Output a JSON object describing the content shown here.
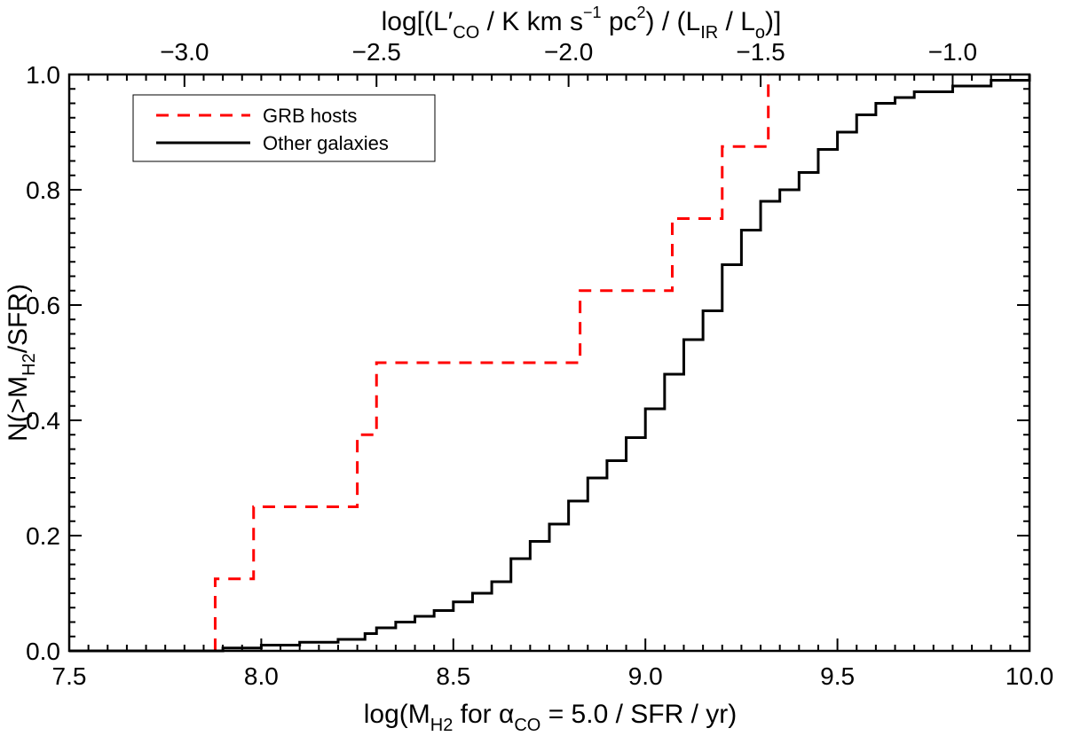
{
  "chart_data": {
    "type": "line",
    "step": true,
    "xlabel": {
      "prefix": "log(M",
      "sub1": "H2",
      "mid": "  for ",
      "greek": "α",
      "sub2": "CO",
      "suffix": " = 5.0 / SFR / yr)"
    },
    "ylabel": {
      "prefix": "N(>M",
      "sub": "H2",
      "suffix": "/SFR)"
    },
    "top_label": {
      "p1": "log[(L′",
      "sub1": "CO",
      "p2": " / K km s",
      "sup1": "−1",
      "p3": " pc",
      "sup2": "2",
      "p4": ") / (L",
      "sub2": "IR",
      "p5": " / L",
      "sub3": "o",
      "p6": ")]"
    },
    "xlim": [
      7.5,
      10.0
    ],
    "ylim": [
      0.0,
      1.0
    ],
    "x_ticks": [
      7.5,
      8.0,
      8.5,
      9.0,
      9.5,
      10.0
    ],
    "x_tick_labels": [
      "7.5",
      "8.0",
      "8.5",
      "9.0",
      "9.5",
      "10.0"
    ],
    "y_ticks": [
      0.0,
      0.2,
      0.4,
      0.6,
      0.8,
      1.0
    ],
    "y_tick_labels": [
      "0.0",
      "0.2",
      "0.4",
      "0.6",
      "0.8",
      "1.0"
    ],
    "top_ticks": [
      -3.0,
      -2.5,
      -2.0,
      -1.5,
      -1.0
    ],
    "top_tick_labels": [
      "−3.0",
      "−2.5",
      "−2.0",
      "−1.5",
      "−1.0"
    ],
    "top_axis_offset": 10.8,
    "legend_placement": "top-left",
    "series": [
      {
        "name": "GRB hosts",
        "color": "#ff0000",
        "dash": true,
        "x": [
          7.88,
          7.98,
          8.25,
          8.3,
          8.83,
          9.07,
          9.2,
          9.32
        ],
        "y": [
          0.125,
          0.25,
          0.375,
          0.5,
          0.625,
          0.75,
          0.875,
          1.0
        ]
      },
      {
        "name": "Other galaxies",
        "color": "#000000",
        "dash": false,
        "x": [
          7.5,
          7.8,
          7.9,
          8.0,
          8.1,
          8.2,
          8.27,
          8.3,
          8.35,
          8.4,
          8.45,
          8.5,
          8.55,
          8.6,
          8.65,
          8.7,
          8.75,
          8.8,
          8.85,
          8.9,
          8.95,
          9.0,
          9.05,
          9.1,
          9.15,
          9.2,
          9.25,
          9.3,
          9.35,
          9.4,
          9.45,
          9.5,
          9.55,
          9.6,
          9.65,
          9.7,
          9.8,
          9.9,
          10.0
        ],
        "y": [
          0.0,
          0.0,
          0.005,
          0.01,
          0.015,
          0.02,
          0.03,
          0.04,
          0.05,
          0.06,
          0.07,
          0.085,
          0.1,
          0.12,
          0.16,
          0.19,
          0.22,
          0.26,
          0.3,
          0.33,
          0.37,
          0.42,
          0.48,
          0.54,
          0.59,
          0.67,
          0.73,
          0.78,
          0.8,
          0.83,
          0.87,
          0.9,
          0.93,
          0.95,
          0.96,
          0.97,
          0.98,
          0.99,
          1.0
        ]
      }
    ]
  }
}
